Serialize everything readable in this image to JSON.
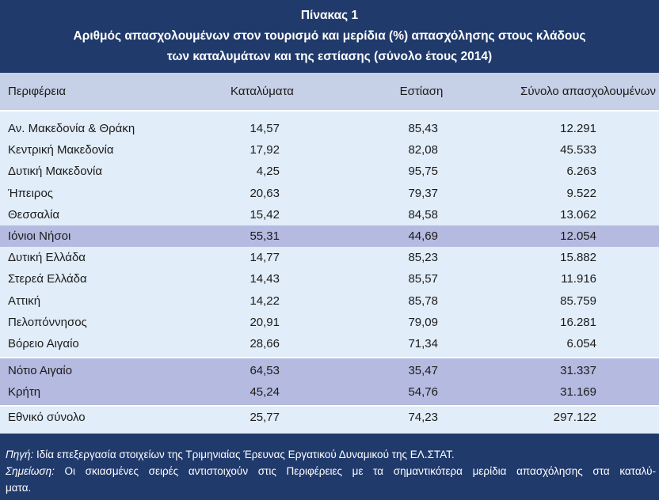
{
  "title": {
    "label": "Πίνακας 1",
    "line1": "Αριθμός απασχολουμένων στον τουρισμό και μερίδια (%) απασχόλησης στους κλάδους",
    "line2": "των καταλυμάτων και της εστίασης (σύνολο έτους 2014)"
  },
  "table": {
    "columns": {
      "region": "Περιφέρεια",
      "accommodation": "Καταλύματα",
      "food_service": "Εστίαση",
      "total": "Σύνολο απασχολουμένων"
    },
    "rows": [
      {
        "region": "Αν. Μακεδονία & Θράκη",
        "accommodation": "14,57",
        "food_service": "85,43",
        "total": "12.291",
        "shaded": false
      },
      {
        "region": "Κεντρική Μακεδονία",
        "accommodation": "17,92",
        "food_service": "82,08",
        "total": "45.533",
        "shaded": false
      },
      {
        "region": "Δυτική Μακεδονία",
        "accommodation": "4,25",
        "food_service": "95,75",
        "total": "6.263",
        "shaded": false
      },
      {
        "region": "Ήπειρος",
        "accommodation": "20,63",
        "food_service": "79,37",
        "total": "9.522",
        "shaded": false
      },
      {
        "region": "Θεσσαλία",
        "accommodation": "15,42",
        "food_service": "84,58",
        "total": "13.062",
        "shaded": false
      },
      {
        "region": "Ιόνιοι Νήσοι",
        "accommodation": "55,31",
        "food_service": "44,69",
        "total": "12.054",
        "shaded": true
      },
      {
        "region": "Δυτική Ελλάδα",
        "accommodation": "14,77",
        "food_service": "85,23",
        "total": "15.882",
        "shaded": false
      },
      {
        "region": "Στερεά Ελλάδα",
        "accommodation": "14,43",
        "food_service": "85,57",
        "total": "11.916",
        "shaded": false
      },
      {
        "region": "Αττική",
        "accommodation": "14,22",
        "food_service": "85,78",
        "total": "85.759",
        "shaded": false
      },
      {
        "region": "Πελοπόννησος",
        "accommodation": "20,91",
        "food_service": "79,09",
        "total": "16.281",
        "shaded": false
      },
      {
        "region": "Βόρειο Αιγαίο",
        "accommodation": "28,66",
        "food_service": "71,34",
        "total": "6.054",
        "shaded": false
      },
      {
        "region": "Νότιο Αιγαίο",
        "accommodation": "64,53",
        "food_service": "35,47",
        "total": "31.337",
        "shaded": true
      },
      {
        "region": "Κρήτη",
        "accommodation": "45,24",
        "food_service": "54,76",
        "total": "31.169",
        "shaded": true
      }
    ],
    "total_row": {
      "region": "Εθνικό σύνολο",
      "accommodation": "25,77",
      "food_service": "74,23",
      "total": "297.122"
    }
  },
  "notes": {
    "source_label": "Πηγή:",
    "source_text": "Ιδία επεξεργασία στοιχείων της Τριμηνιαίας Έρευνας Εργατικού Δυναμικού της ΕΛ.ΣΤΑΤ.",
    "note_label": "Σημείωση:",
    "note_text": "Οι σκιασμένες σειρές αντιστοιχούν στις Περιφέρειες με τα σημαντικότερα μερίδια απασχόλησης στα καταλύ-",
    "note_text_cont": "ματα."
  },
  "colors": {
    "header_bg": "#203a6c",
    "column_header_bg": "#c6d0e6",
    "body_bg": "#e1edf8",
    "shaded_row_bg": "#b5bae0"
  }
}
